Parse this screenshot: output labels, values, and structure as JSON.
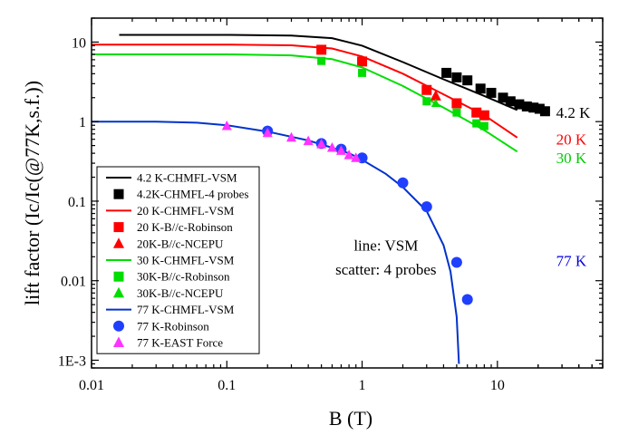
{
  "chart_data": {
    "type": "scatter",
    "xlabel": "B (T)",
    "ylabel": "lift factor (Ic/Ic(@77K,s.f.))",
    "xscale": "log",
    "yscale": "log",
    "xlim": [
      0.01,
      60
    ],
    "ylim": [
      0.0008,
      20
    ],
    "xticks": [
      {
        "value": 0.01,
        "label": "0.01"
      },
      {
        "value": 0.1,
        "label": "0.1"
      },
      {
        "value": 1,
        "label": "1"
      },
      {
        "value": 10,
        "label": "10"
      }
    ],
    "yticks": [
      {
        "value": 0.001,
        "label": "1E-3"
      },
      {
        "value": 0.01,
        "label": "0.01"
      },
      {
        "value": 0.1,
        "label": "0.1"
      },
      {
        "value": 1,
        "label": "1"
      },
      {
        "value": 10,
        "label": "10"
      }
    ],
    "grid": false,
    "legend_position": "bottom-left",
    "series": [
      {
        "name": "4.2 K-CHMFL-VSM",
        "kind": "line",
        "color": "#000000",
        "x": [
          0.016,
          0.1,
          0.3,
          0.6,
          1.0,
          2.0,
          4.0,
          8.0,
          14.0
        ],
        "y": [
          12.3,
          12.3,
          12.1,
          11.2,
          9.0,
          5.6,
          3.4,
          2.1,
          1.4
        ]
      },
      {
        "name": "4.2K-CHMFL-4 probes",
        "kind": "scatter",
        "marker": "square",
        "color": "#000000",
        "x": [
          4.2,
          5.0,
          6.0,
          7.5,
          9.0,
          11.0,
          12.5,
          14.5,
          16.5,
          18.5,
          20.5,
          22.5
        ],
        "y": [
          4.1,
          3.6,
          3.3,
          2.6,
          2.3,
          2.0,
          1.8,
          1.65,
          1.55,
          1.5,
          1.45,
          1.35
        ]
      },
      {
        "name": "20 K-CHMFL-VSM",
        "kind": "line",
        "color": "#ff0000",
        "x": [
          0.01,
          0.1,
          0.3,
          0.6,
          1.0,
          2.0,
          4.0,
          8.0,
          14.0
        ],
        "y": [
          9.3,
          9.3,
          9.1,
          8.3,
          6.6,
          4.0,
          2.2,
          1.2,
          0.63
        ]
      },
      {
        "name": "20 K-B//c-Robinson",
        "kind": "scatter",
        "marker": "square",
        "color": "#ff0000",
        "x": [
          0.5,
          1.0,
          3.0,
          5.0,
          7.0,
          8.0
        ],
        "y": [
          8.0,
          5.7,
          2.5,
          1.7,
          1.3,
          1.2
        ]
      },
      {
        "name": "20K-B//c-NCEPU",
        "kind": "scatter",
        "marker": "triangle",
        "color": "#ff0000",
        "x": [
          3.5
        ],
        "y": [
          2.1
        ]
      },
      {
        "name": "30 K-CHMFL-VSM",
        "kind": "line",
        "color": "#00dd00",
        "x": [
          0.01,
          0.1,
          0.3,
          0.6,
          1.0,
          2.0,
          4.0,
          8.0,
          14.0
        ],
        "y": [
          7.0,
          7.0,
          6.8,
          6.1,
          4.8,
          2.8,
          1.5,
          0.78,
          0.42
        ]
      },
      {
        "name": "30K-B//c-Robinson",
        "kind": "scatter",
        "marker": "square",
        "color": "#00dd00",
        "x": [
          0.5,
          1.0,
          3.0,
          5.0,
          7.0,
          8.0
        ],
        "y": [
          5.8,
          4.1,
          1.8,
          1.3,
          0.95,
          0.88
        ]
      },
      {
        "name": "30K-B//c-NCEPU",
        "kind": "scatter",
        "marker": "triangle",
        "color": "#00dd00",
        "x": [
          3.5
        ],
        "y": [
          1.7
        ]
      },
      {
        "name": "77 K-CHMFL-VSM",
        "kind": "line",
        "color": "#0033cc",
        "x": [
          0.01,
          0.03,
          0.06,
          0.1,
          0.2,
          0.4,
          0.6,
          0.8,
          1.0,
          1.5,
          2.0,
          3.0,
          4.0,
          4.5,
          5.0,
          5.2
        ],
        "y": [
          1.0,
          1.0,
          0.97,
          0.9,
          0.75,
          0.58,
          0.47,
          0.4,
          0.33,
          0.22,
          0.15,
          0.075,
          0.028,
          0.013,
          0.0035,
          0.0009
        ]
      },
      {
        "name": "77 K-Robinson",
        "kind": "scatter",
        "marker": "circle",
        "color": "#1f3fff",
        "x": [
          0.2,
          0.5,
          0.7,
          1.0,
          2.0,
          3.0,
          5.0,
          6.0
        ],
        "y": [
          0.76,
          0.53,
          0.45,
          0.35,
          0.17,
          0.085,
          0.017,
          0.0058
        ]
      },
      {
        "name": "77 K-EAST Force",
        "kind": "scatter",
        "marker": "triangle",
        "color": "#ff33ff",
        "x": [
          0.1,
          0.2,
          0.3,
          0.4,
          0.5,
          0.6,
          0.7,
          0.8,
          0.9
        ],
        "y": [
          0.88,
          0.72,
          0.63,
          0.57,
          0.52,
          0.47,
          0.43,
          0.38,
          0.35
        ]
      }
    ],
    "annotations": [
      {
        "text": "4.2 K",
        "color": "#000000",
        "x": 24,
        "y": 1.3
      },
      {
        "text": "20 K",
        "color": "#ff0000",
        "x": 24,
        "y": 0.6
      },
      {
        "text": "30 K",
        "color": "#00cc00",
        "x": 24,
        "y": 0.35
      },
      {
        "text": "77 K",
        "color": "#0000dd",
        "x": 24,
        "y": 0.018
      },
      {
        "text": "line: VSM",
        "color": "#000000",
        "x": 1.5,
        "y": 0.028
      },
      {
        "text": "scatter: 4 probes",
        "color": "#000000",
        "x": 1.5,
        "y": 0.014
      }
    ]
  }
}
